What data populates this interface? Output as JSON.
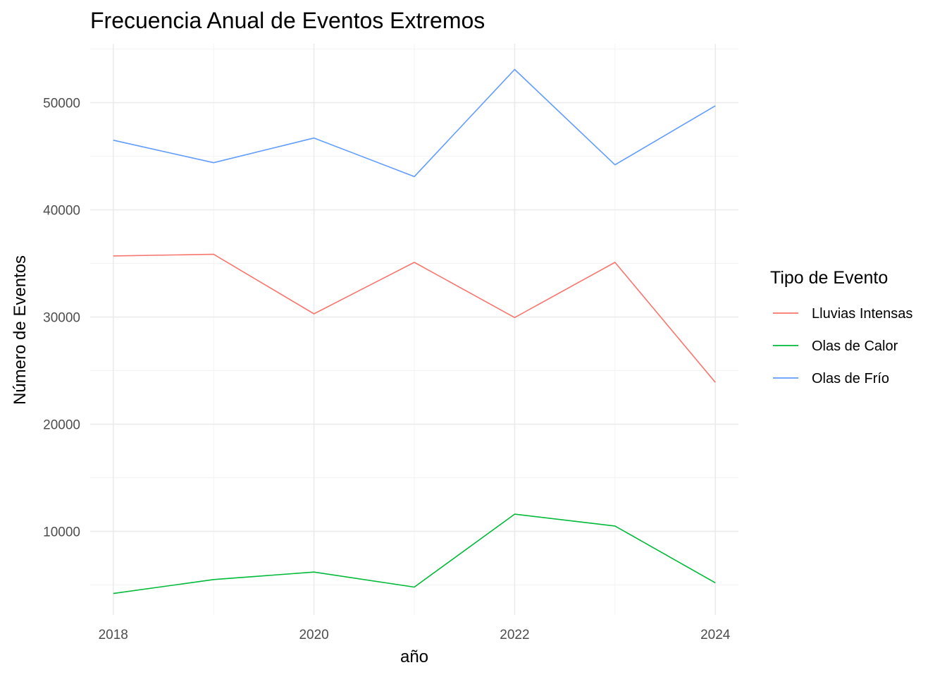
{
  "chart_data": {
    "type": "line",
    "title": "Frecuencia Anual de Eventos Extremos",
    "xlabel": "año",
    "ylabel": "Número de Eventos",
    "x": [
      2018,
      2019,
      2020,
      2021,
      2022,
      2023,
      2024
    ],
    "xlim": [
      2017.77,
      2024.23
    ],
    "ylim": [
      2200,
      55500
    ],
    "x_ticks": [
      2018,
      2020,
      2022,
      2024
    ],
    "x_tick_labels": [
      "2018",
      "2020",
      "2022",
      "2024"
    ],
    "y_ticks": [
      10000,
      20000,
      30000,
      40000,
      50000
    ],
    "y_tick_labels": [
      "10000",
      "20000",
      "30000",
      "40000",
      "50000"
    ],
    "grid": true,
    "legend": {
      "title": "Tipo de Evento",
      "position": "right"
    },
    "series": [
      {
        "name": "Lluvias Intensas",
        "color": "#F8766D",
        "values": [
          35700,
          35850,
          30300,
          35100,
          29950,
          35100,
          23900
        ]
      },
      {
        "name": "Olas de Calor",
        "color": "#00BA38",
        "values": [
          4200,
          5500,
          6200,
          4800,
          11600,
          10500,
          5200
        ]
      },
      {
        "name": "Olas de Frío",
        "color": "#619CFF",
        "values": [
          46500,
          44400,
          46700,
          43100,
          53100,
          44200,
          49700
        ]
      }
    ]
  }
}
